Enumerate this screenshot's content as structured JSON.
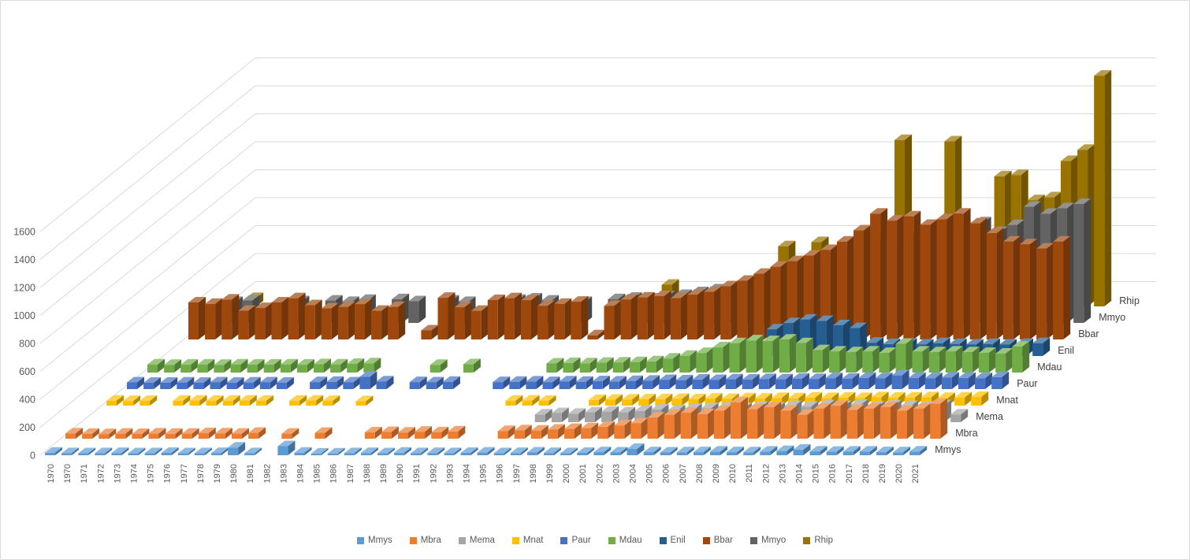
{
  "window": {
    "background": "#ffffff",
    "border_color": "#d9d9d9"
  },
  "chart_data": {
    "type": "bar",
    "projection": "3d-column",
    "title": "",
    "xlabel": "",
    "ylabel": "",
    "grid": true,
    "grid_color": "#d9d9d9",
    "axis_text_color": "#595959",
    "series_label_color": "#404040",
    "legend_position": "bottom",
    "y_axis": {
      "min": 0,
      "max": 1600,
      "step": 200,
      "tick_labels": [
        "0",
        "200",
        "400",
        "600",
        "800",
        "1000",
        "1200",
        "1400",
        "1600"
      ]
    },
    "categories": [
      "1970",
      "1970",
      "1971",
      "1972",
      "1973",
      "1974",
      "1975",
      "1976",
      "1977",
      "1978",
      "1979",
      "1980",
      "1981",
      "1982",
      "1983",
      "1984",
      "1985",
      "1986",
      "1987",
      "1988",
      "1989",
      "1990",
      "1991",
      "1992",
      "1993",
      "1994",
      "1995",
      "1996",
      "1997",
      "1998",
      "1999",
      "2000",
      "2001",
      "2002",
      "2003",
      "2004",
      "2005",
      "2006",
      "2007",
      "2008",
      "2009",
      "2010",
      "2011",
      "2012",
      "2013",
      "2014",
      "2015",
      "2016",
      "2017",
      "2018",
      "2019",
      "2020",
      "2021"
    ],
    "series": [
      {
        "name": "Mmys",
        "color": "#5B9BD5",
        "values": [
          18,
          15,
          14,
          15,
          16,
          14,
          15,
          17,
          14,
          15,
          16,
          55,
          15,
          0,
          65,
          18,
          12,
          13,
          15,
          16,
          14,
          18,
          15,
          16,
          15,
          17,
          19,
          15,
          16,
          20,
          16,
          15,
          17,
          22,
          20,
          45,
          22,
          20,
          21,
          22,
          26,
          22,
          21,
          26,
          30,
          40,
          27,
          25,
          26,
          26,
          22,
          21,
          27
        ]
      },
      {
        "name": "Mbra",
        "color": "#ED7D31",
        "values": [
          38,
          35,
          33,
          36,
          34,
          37,
          35,
          36,
          40,
          38,
          36,
          42,
          0,
          36,
          0,
          42,
          0,
          0,
          45,
          48,
          44,
          50,
          46,
          52,
          0,
          0,
          55,
          60,
          58,
          65,
          70,
          75,
          85,
          95,
          110,
          150,
          170,
          185,
          175,
          200,
          260,
          210,
          225,
          200,
          170,
          215,
          235,
          205,
          215,
          225,
          200,
          215,
          250
        ]
      },
      {
        "name": "Mema",
        "color": "#A5A5A5",
        "values": [
          0,
          0,
          0,
          0,
          0,
          0,
          0,
          0,
          0,
          0,
          0,
          0,
          0,
          0,
          0,
          0,
          0,
          0,
          0,
          0,
          0,
          0,
          0,
          0,
          0,
          0,
          0,
          55,
          65,
          60,
          70,
          75,
          70,
          80,
          90,
          85,
          95,
          100,
          105,
          100,
          110,
          105,
          115,
          110,
          120,
          115,
          125,
          110,
          120,
          115,
          110,
          120,
          55
        ]
      },
      {
        "name": "Mnat",
        "color": "#FFC000",
        "values": [
          35,
          33,
          34,
          0,
          35,
          36,
          34,
          35,
          36,
          34,
          0,
          35,
          36,
          34,
          0,
          32,
          0,
          0,
          0,
          0,
          0,
          0,
          0,
          0,
          35,
          36,
          34,
          0,
          0,
          40,
          42,
          44,
          45,
          46,
          48,
          45,
          50,
          48,
          52,
          50,
          55,
          52,
          56,
          54,
          58,
          55,
          60,
          56,
          58,
          60,
          55,
          58,
          62
        ]
      },
      {
        "name": "Paur",
        "color": "#4472C4",
        "values": [
          48,
          45,
          46,
          47,
          45,
          48,
          46,
          47,
          48,
          46,
          0,
          50,
          52,
          48,
          88,
          55,
          0,
          50,
          48,
          52,
          0,
          0,
          50,
          52,
          54,
          50,
          55,
          52,
          56,
          54,
          58,
          60,
          65,
          62,
          68,
          65,
          70,
          68,
          72,
          70,
          75,
          72,
          78,
          75,
          80,
          78,
          98,
          80,
          78,
          82,
          80,
          78,
          85
        ]
      },
      {
        "name": "Mdau",
        "color": "#70AD47",
        "values": [
          58,
          55,
          56,
          57,
          55,
          58,
          56,
          57,
          58,
          56,
          60,
          58,
          62,
          66,
          0,
          0,
          0,
          55,
          0,
          60,
          0,
          0,
          0,
          0,
          65,
          68,
          66,
          70,
          72,
          75,
          80,
          100,
          120,
          140,
          180,
          210,
          230,
          225,
          235,
          210,
          160,
          150,
          145,
          150,
          140,
          205,
          150,
          145,
          150,
          145,
          140,
          135,
          185
        ]
      },
      {
        "name": "Enil",
        "color": "#255E91",
        "values": [
          0,
          0,
          0,
          0,
          0,
          0,
          0,
          0,
          0,
          0,
          0,
          0,
          0,
          0,
          0,
          0,
          0,
          0,
          0,
          0,
          0,
          0,
          0,
          0,
          0,
          0,
          0,
          0,
          0,
          0,
          0,
          0,
          0,
          0,
          0,
          0,
          190,
          235,
          260,
          250,
          220,
          200,
          95,
          85,
          88,
          82,
          92,
          86,
          82,
          86,
          82,
          86,
          92
        ]
      },
      {
        "name": "Bbar",
        "color": "#9E480E",
        "values": [
          265,
          255,
          285,
          205,
          225,
          265,
          295,
          245,
          222,
          232,
          252,
          205,
          232,
          0,
          65,
          298,
          230,
          205,
          282,
          295,
          280,
          240,
          255,
          270,
          30,
          240,
          285,
          300,
          310,
          295,
          320,
          340,
          380,
          420,
          470,
          520,
          560,
          600,
          640,
          700,
          780,
          900,
          850,
          880,
          820,
          860,
          900,
          830,
          760,
          700,
          680,
          650,
          700
        ]
      },
      {
        "name": "Mmyo",
        "color": "#636363",
        "values": [
          0,
          150,
          160,
          0,
          140,
          155,
          0,
          160,
          150,
          165,
          0,
          170,
          155,
          0,
          160,
          150,
          0,
          0,
          165,
          175,
          160,
          0,
          150,
          0,
          170,
          180,
          175,
          190,
          200,
          220,
          240,
          260,
          300,
          340,
          380,
          400,
          430,
          470,
          520,
          560,
          600,
          560,
          620,
          650,
          600,
          680,
          720,
          650,
          700,
          830,
          780,
          820,
          850
        ]
      },
      {
        "name": "Rhip",
        "color": "#997300",
        "values": [
          0,
          60,
          0,
          0,
          0,
          0,
          0,
          0,
          0,
          0,
          0,
          0,
          0,
          0,
          0,
          0,
          0,
          0,
          0,
          0,
          0,
          0,
          0,
          0,
          0,
          0,
          155,
          0,
          0,
          0,
          0,
          0,
          0,
          430,
          0,
          460,
          0,
          120,
          0,
          0,
          1190,
          0,
          0,
          1180,
          260,
          250,
          930,
          940,
          760,
          780,
          1040,
          1120,
          1650
        ]
      }
    ],
    "legend_labels": [
      "Mmys",
      "Mbra",
      "Mema",
      "Mnat",
      "Paur",
      "Mdau",
      "Enil",
      "Bbar",
      "Mmyo",
      "Rhip"
    ],
    "series_end_labels": [
      "Mmys",
      "Mbra",
      "Mema",
      "Mnat",
      "Paur",
      "Mdau",
      "Enil",
      "Bbar",
      "Mmyo",
      "Rhip"
    ]
  }
}
